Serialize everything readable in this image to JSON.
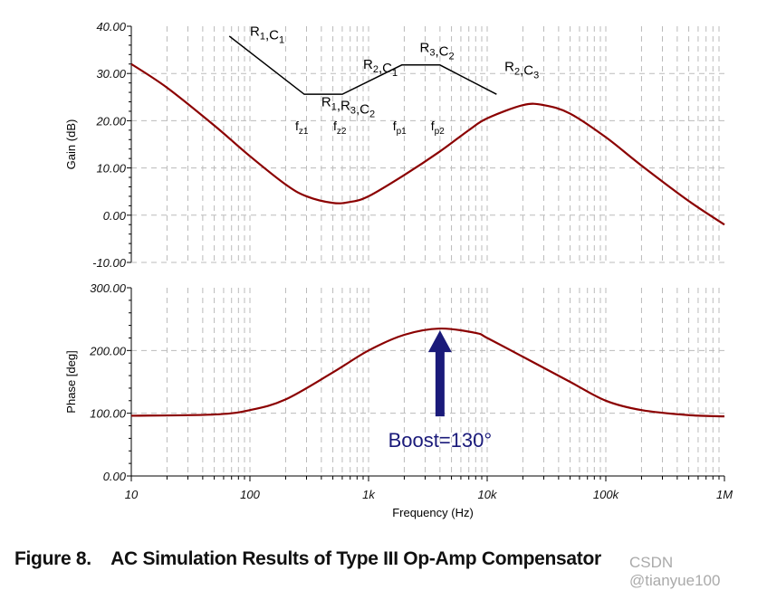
{
  "chart_data": [
    {
      "type": "line",
      "ylabel": "Gain (dB)",
      "ylim": [
        -10,
        40
      ],
      "yticks": [
        "40.00",
        "30.00",
        "20.00",
        "10.00",
        "0.00",
        "-10.00"
      ],
      "ytick_values": [
        40,
        30,
        20,
        10,
        0,
        -10
      ],
      "xscale": "log",
      "xlim": [
        10,
        1000000
      ],
      "series": [
        {
          "name": "Gain",
          "color": "#8b0000",
          "x": [
            10,
            20,
            50,
            100,
            200,
            300,
            500,
            700,
            1000,
            2000,
            4000,
            7000,
            10000,
            20000,
            30000,
            50000,
            100000,
            200000,
            500000,
            1000000
          ],
          "y": [
            32,
            27,
            19,
            12.5,
            6.5,
            4,
            2.6,
            2.8,
            4,
            8.5,
            13.5,
            18,
            20.5,
            23.3,
            23.3,
            21.5,
            16.5,
            10.5,
            3,
            -2
          ]
        }
      ],
      "asymptote": {
        "x": [
          67,
          287,
          601,
          1906,
          3994,
          12000
        ],
        "y": [
          37.9,
          25.6,
          25.6,
          31.8,
          31.8,
          25.6
        ]
      },
      "annotations": [
        {
          "text": "R",
          "sub": "1",
          "text2": ",C",
          "sub2": "1",
          "x": 100,
          "y": 38
        },
        {
          "text": "R",
          "sub": "1",
          "text2": ",R",
          "sub2": "3",
          "text3": ",C",
          "sub3": "2",
          "x": 400,
          "y": 23
        },
        {
          "text": "R",
          "sub": "2",
          "text2": ",C",
          "sub2": "1",
          "x": 900,
          "y": 31
        },
        {
          "text": "R",
          "sub": "3",
          "text2": ",C",
          "sub2": "2",
          "x": 2700,
          "y": 34.5
        },
        {
          "text": "R",
          "sub": "2",
          "text2": ",C",
          "sub2": "3",
          "x": 14000,
          "y": 30.5
        }
      ],
      "markers": [
        {
          "label": "f",
          "sub": "z1",
          "x": 287
        },
        {
          "label": "f",
          "sub": "z2",
          "x": 601
        },
        {
          "label": "f",
          "sub": "p1",
          "x": 1906
        },
        {
          "label": "f",
          "sub": "p2",
          "x": 3994
        }
      ]
    },
    {
      "type": "line",
      "ylabel": "Phase [deg]",
      "ylim": [
        0,
        300
      ],
      "yticks": [
        "300.00",
        "200.00",
        "100.00",
        "0.00"
      ],
      "ytick_values": [
        300,
        200,
        100,
        0
      ],
      "xscale": "log",
      "xlim": [
        10,
        1000000
      ],
      "xlabel": "Frequency (Hz)",
      "xticks": [
        "10",
        "100",
        "1k",
        "10k",
        "100k",
        "1M"
      ],
      "xtick_values": [
        10,
        100,
        1000,
        10000,
        100000,
        1000000
      ],
      "series": [
        {
          "name": "Phase",
          "color": "#8b0000",
          "x": [
            10,
            50,
            100,
            200,
            500,
            1000,
            2000,
            4000,
            8000,
            10000,
            20000,
            50000,
            100000,
            200000,
            500000,
            1000000
          ],
          "y": [
            96,
            98,
            105,
            122,
            165,
            200,
            225,
            235,
            228,
            220,
            190,
            150,
            120,
            105,
            97,
            95
          ]
        }
      ],
      "arrow": {
        "x": 4000,
        "y_from": 95,
        "y_to": 232,
        "label": "Boost=130°",
        "color": "#1a1a7a"
      }
    }
  ],
  "caption": "Figure 8.    AC Simulation Results of Type III Op-Amp Compensator",
  "watermark": "CSDN @tianyue100"
}
